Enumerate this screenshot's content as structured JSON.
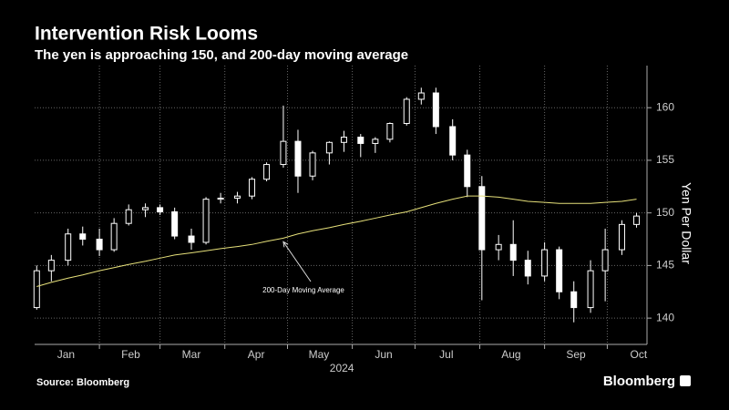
{
  "chart_data": {
    "type": "candlestick",
    "title": "Intervention Risk Looms",
    "subtitle": "The yen is approaching 150, and 200-day moving average",
    "source": "Source: Bloomberg",
    "brand": "Bloomberg",
    "ylabel": "Yen Per Dollar",
    "xlabel": "2024",
    "x": [
      1,
      8,
      16,
      23,
      31,
      38,
      45,
      53,
      60,
      67,
      75,
      82,
      89,
      97,
      104,
      111,
      119,
      126,
      133,
      141,
      148,
      156,
      163,
      170,
      178,
      185,
      192,
      200,
      207,
      214,
      222,
      229,
      236,
      244,
      251,
      258,
      266,
      273,
      281,
      288
    ],
    "candles": {
      "color": "#ffffff",
      "open": [
        141,
        144.5,
        145.5,
        148,
        147.5,
        146.5,
        149,
        150.3,
        150.5,
        150.1,
        147.8,
        147.2,
        151.3,
        151.4,
        151.6,
        153.2,
        154.6,
        156.8,
        153.5,
        155.7,
        156.7,
        157.2,
        156.6,
        157,
        158.5,
        160.8,
        161.4,
        158.2,
        155.5,
        152.5,
        146.5,
        147,
        145.5,
        144,
        146.5,
        142.5,
        141,
        144.5,
        146.5,
        148.9
      ],
      "high": [
        145,
        146,
        148.5,
        148.7,
        148.5,
        149.5,
        150.8,
        150.9,
        150.8,
        150.5,
        148.5,
        151.5,
        151.9,
        152,
        153.4,
        154.8,
        160.2,
        157.9,
        155.9,
        156.8,
        157.8,
        157.5,
        157.2,
        158.6,
        161,
        161.9,
        161.9,
        158.9,
        156,
        153.5,
        147.9,
        149.3,
        146.4,
        147.2,
        146.8,
        143.5,
        145.5,
        148.5,
        149.3,
        150
      ],
      "low": [
        140.8,
        143.5,
        145,
        146.9,
        145.9,
        146.3,
        148.8,
        149.6,
        149.8,
        147.5,
        146.5,
        147,
        150.9,
        150.9,
        151.3,
        153,
        154.3,
        151.9,
        153.1,
        154.6,
        155.8,
        155.3,
        155.7,
        156.7,
        158.3,
        160.3,
        157.5,
        155,
        151.5,
        141.7,
        145.5,
        144,
        143.2,
        143.5,
        141.8,
        139.6,
        140.5,
        141.6,
        146,
        148.6
      ],
      "close": [
        144.5,
        145.5,
        148,
        147.5,
        146.5,
        149,
        150.3,
        150.5,
        150.1,
        147.8,
        147.2,
        151.3,
        151.4,
        151.6,
        153.2,
        154.6,
        156.8,
        153.5,
        155.7,
        156.7,
        157.2,
        156.6,
        157,
        158.5,
        160.8,
        161.4,
        158.2,
        155.5,
        152.5,
        146.5,
        147,
        145.5,
        144,
        146.5,
        142.5,
        141,
        144.5,
        146.5,
        148.9,
        149.7
      ]
    },
    "series": [
      {
        "name": "200-Day Moving Average",
        "color": "#e6e07a",
        "values": [
          143.0,
          143.4,
          143.8,
          144.1,
          144.5,
          144.8,
          145.1,
          145.4,
          145.7,
          146.0,
          146.2,
          146.4,
          146.6,
          146.8,
          147.0,
          147.3,
          147.6,
          148.0,
          148.3,
          148.6,
          148.9,
          149.2,
          149.5,
          149.8,
          150.1,
          150.5,
          150.9,
          151.3,
          151.6,
          151.6,
          151.5,
          151.3,
          151.1,
          151.0,
          150.9,
          150.9,
          150.9,
          151.0,
          151.1,
          151.3
        ]
      }
    ],
    "xlim": [
      0,
      293
    ],
    "xticks": [
      {
        "value": 15,
        "label": "Jan"
      },
      {
        "value": 46,
        "label": "Feb"
      },
      {
        "value": 75,
        "label": "Mar"
      },
      {
        "value": 106,
        "label": "Apr"
      },
      {
        "value": 136,
        "label": "May"
      },
      {
        "value": 167,
        "label": "Jun"
      },
      {
        "value": 197,
        "label": "Jul"
      },
      {
        "value": 228,
        "label": "Aug"
      },
      {
        "value": 259,
        "label": "Sep"
      },
      {
        "value": 289,
        "label": "Oct"
      }
    ],
    "xgrid": [
      31,
      60,
      91,
      121,
      152,
      182,
      213,
      244,
      274
    ],
    "xlabel_at": 147,
    "annotation_at": 119,
    "ylim": [
      137.5,
      164
    ],
    "yticks": [
      140,
      145,
      150,
      155,
      160
    ],
    "grid": true
  }
}
